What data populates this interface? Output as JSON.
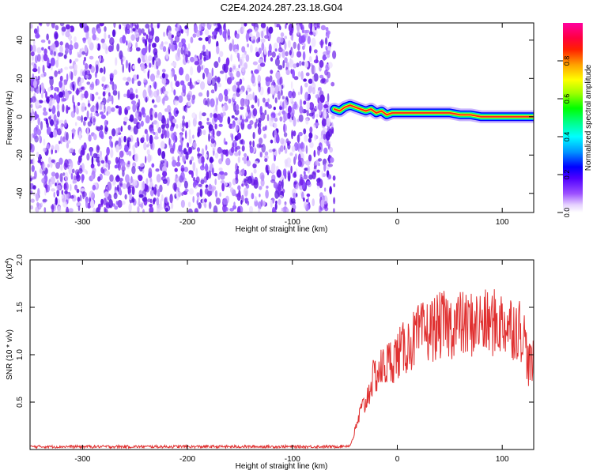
{
  "figure": {
    "title": "C2E4.2024.287.23.18.G04"
  },
  "chart_data": [
    {
      "type": "heatmap",
      "xlabel": "Height of straight line (km)",
      "ylabel": "Frequency (Hz)",
      "xlim": [
        -350,
        130
      ],
      "ylim": [
        -50,
        49
      ],
      "x_ticks": [
        -300,
        -200,
        -100,
        0,
        100
      ],
      "x_tick_labels": [
        "-300",
        "-200",
        "-100",
        "0",
        "100"
      ],
      "y_ticks": [
        -40,
        -20,
        0,
        20,
        40
      ],
      "y_tick_labels": [
        "-40",
        "-20",
        "0",
        "20",
        "40"
      ],
      "grid": false,
      "noise_region_x": [
        -350,
        -60
      ],
      "signal_onset_x": -60,
      "signal_track": [
        [
          -60,
          4
        ],
        [
          -55,
          3
        ],
        [
          -50,
          5
        ],
        [
          -45,
          6
        ],
        [
          -40,
          5
        ],
        [
          -35,
          4
        ],
        [
          -30,
          3
        ],
        [
          -25,
          4
        ],
        [
          -20,
          2
        ],
        [
          -15,
          3
        ],
        [
          -10,
          1
        ],
        [
          -5,
          2
        ],
        [
          0,
          2
        ],
        [
          10,
          2
        ],
        [
          20,
          2
        ],
        [
          30,
          2
        ],
        [
          40,
          2
        ],
        [
          50,
          2
        ],
        [
          60,
          1
        ],
        [
          70,
          1
        ],
        [
          80,
          0
        ],
        [
          90,
          0
        ],
        [
          100,
          0
        ],
        [
          110,
          0
        ],
        [
          120,
          0
        ],
        [
          130,
          0
        ]
      ],
      "colorbar": {
        "label": "Normalized spectral amplitude",
        "range": [
          0,
          1
        ],
        "ticks": [
          0.0,
          0.2,
          0.4,
          0.6,
          0.8
        ],
        "tick_labels": [
          "0.0",
          "0.2",
          "0.4",
          "0.6",
          "0.8"
        ],
        "colors": [
          "#ffffff",
          "#c08cff",
          "#8000ff",
          "#0000ff",
          "#00c8ff",
          "#00ff00",
          "#ffff00",
          "#ff8000",
          "#ff0000",
          "#ff00a0"
        ]
      }
    },
    {
      "type": "line",
      "xlabel": "Height of straight line (km)",
      "ylabel": "SNR (10 * v/v)",
      "y_multiplier": "(x10",
      "y_multiplier_exp": "4",
      "y_multiplier_close": ")",
      "xlim": [
        -350,
        130
      ],
      "ylim": [
        0,
        20000
      ],
      "x_ticks": [
        -300,
        -200,
        -100,
        0,
        100
      ],
      "x_tick_labels": [
        "-300",
        "-200",
        "-100",
        "0",
        "100"
      ],
      "y_ticks": [
        5000,
        10000,
        15000,
        20000
      ],
      "y_tick_labels": [
        "0.5",
        "1.0",
        "1.5",
        "2.0"
      ],
      "grid": false,
      "line_color": "#e03030",
      "series": [
        {
          "x": [
            -350,
            -300,
            -250,
            -200,
            -150,
            -100,
            -60,
            -45,
            -40,
            -35,
            -30,
            -25,
            -20,
            -15,
            -10,
            -5,
            0,
            5,
            10,
            15,
            20,
            25,
            30,
            35,
            40,
            45,
            50,
            55,
            60,
            65,
            70,
            75,
            80,
            85,
            90,
            95,
            100,
            105,
            110,
            115,
            120,
            125,
            130
          ],
          "values": [
            300,
            300,
            300,
            300,
            300,
            300,
            300,
            400,
            2000,
            4000,
            5000,
            7000,
            8000,
            8500,
            9000,
            9500,
            10000,
            10500,
            11000,
            11500,
            12000,
            12300,
            12500,
            12800,
            13000,
            13200,
            13000,
            13200,
            13300,
            13000,
            13200,
            13300,
            13400,
            13200,
            13300,
            13400,
            13300,
            13200,
            13000,
            12800,
            12500,
            9000,
            9000
          ]
        }
      ]
    }
  ]
}
